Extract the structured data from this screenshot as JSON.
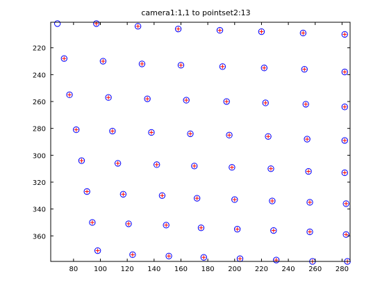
{
  "chart_data": {
    "type": "scatter",
    "title": "camera1:1,1 to pointset2:13",
    "xlabel": "",
    "ylabel": "",
    "xlim": [
      63,
      286
    ],
    "ylim": [
      379,
      201
    ],
    "y_reversed": true,
    "grid": false,
    "xticks": [
      80,
      100,
      120,
      140,
      160,
      180,
      200,
      220,
      240,
      260,
      280
    ],
    "yticks": [
      220,
      240,
      260,
      280,
      300,
      320,
      340,
      360
    ],
    "series": [
      {
        "marker": "circle",
        "color": "#0000ff",
        "points": [
          [
            68,
            202
          ],
          [
            97,
            202
          ],
          [
            128,
            204
          ],
          [
            158,
            206
          ],
          [
            189,
            207
          ],
          [
            220,
            208
          ],
          [
            251,
            209
          ],
          [
            282,
            210
          ],
          [
            73,
            228
          ],
          [
            102,
            230
          ],
          [
            131,
            232
          ],
          [
            160,
            233
          ],
          [
            191,
            234
          ],
          [
            222,
            235
          ],
          [
            252,
            236
          ],
          [
            282,
            238
          ],
          [
            77,
            255
          ],
          [
            106,
            257
          ],
          [
            135,
            258
          ],
          [
            164,
            259
          ],
          [
            194,
            260
          ],
          [
            223,
            261
          ],
          [
            253,
            262
          ],
          [
            282,
            264
          ],
          [
            82,
            281
          ],
          [
            109,
            282
          ],
          [
            138,
            283
          ],
          [
            167,
            284
          ],
          [
            196,
            285
          ],
          [
            225,
            286
          ],
          [
            254,
            288
          ],
          [
            282,
            289
          ],
          [
            86,
            304
          ],
          [
            113,
            306
          ],
          [
            142,
            307
          ],
          [
            170,
            308
          ],
          [
            198,
            309
          ],
          [
            227,
            310
          ],
          [
            255,
            312
          ],
          [
            282,
            313
          ],
          [
            90,
            327
          ],
          [
            117,
            329
          ],
          [
            146,
            330
          ],
          [
            172,
            332
          ],
          [
            200,
            333
          ],
          [
            228,
            334
          ],
          [
            256,
            335
          ],
          [
            283,
            336
          ],
          [
            94,
            350
          ],
          [
            121,
            351
          ],
          [
            149,
            352
          ],
          [
            175,
            354
          ],
          [
            202,
            355
          ],
          [
            229,
            356
          ],
          [
            256,
            357
          ],
          [
            283,
            359
          ],
          [
            98,
            371
          ],
          [
            124,
            374
          ],
          [
            151,
            375
          ],
          [
            177,
            376
          ],
          [
            204,
            377
          ],
          [
            231,
            378
          ],
          [
            258,
            379
          ],
          [
            284,
            379
          ]
        ]
      },
      {
        "marker": "plus",
        "color": "#ff0000",
        "points": [
          [
            97,
            202
          ],
          [
            128,
            204
          ],
          [
            158,
            206
          ],
          [
            189,
            207
          ],
          [
            220,
            208
          ],
          [
            251,
            209
          ],
          [
            282,
            210
          ],
          [
            73,
            228
          ],
          [
            102,
            230
          ],
          [
            131,
            232
          ],
          [
            160,
            233
          ],
          [
            191,
            234
          ],
          [
            222,
            235
          ],
          [
            252,
            236
          ],
          [
            282,
            238
          ],
          [
            77,
            255
          ],
          [
            106,
            257
          ],
          [
            135,
            258
          ],
          [
            164,
            259
          ],
          [
            194,
            260
          ],
          [
            223,
            261
          ],
          [
            253,
            262
          ],
          [
            282,
            264
          ],
          [
            82,
            281
          ],
          [
            109,
            282
          ],
          [
            138,
            283
          ],
          [
            167,
            284
          ],
          [
            196,
            285
          ],
          [
            225,
            286
          ],
          [
            254,
            288
          ],
          [
            282,
            289
          ],
          [
            86,
            304
          ],
          [
            113,
            306
          ],
          [
            142,
            307
          ],
          [
            170,
            308
          ],
          [
            198,
            309
          ],
          [
            227,
            310
          ],
          [
            255,
            312
          ],
          [
            282,
            313
          ],
          [
            90,
            327
          ],
          [
            117,
            329
          ],
          [
            146,
            330
          ],
          [
            172,
            332
          ],
          [
            200,
            333
          ],
          [
            228,
            334
          ],
          [
            256,
            335
          ],
          [
            283,
            336
          ],
          [
            94,
            350
          ],
          [
            121,
            351
          ],
          [
            149,
            352
          ],
          [
            175,
            354
          ],
          [
            202,
            355
          ],
          [
            229,
            356
          ],
          [
            256,
            357
          ],
          [
            283,
            359
          ],
          [
            98,
            371
          ],
          [
            124,
            374
          ],
          [
            151,
            375
          ],
          [
            177,
            376
          ],
          [
            204,
            377
          ],
          [
            231,
            378
          ],
          [
            258,
            379
          ],
          [
            284,
            379
          ]
        ]
      }
    ]
  }
}
